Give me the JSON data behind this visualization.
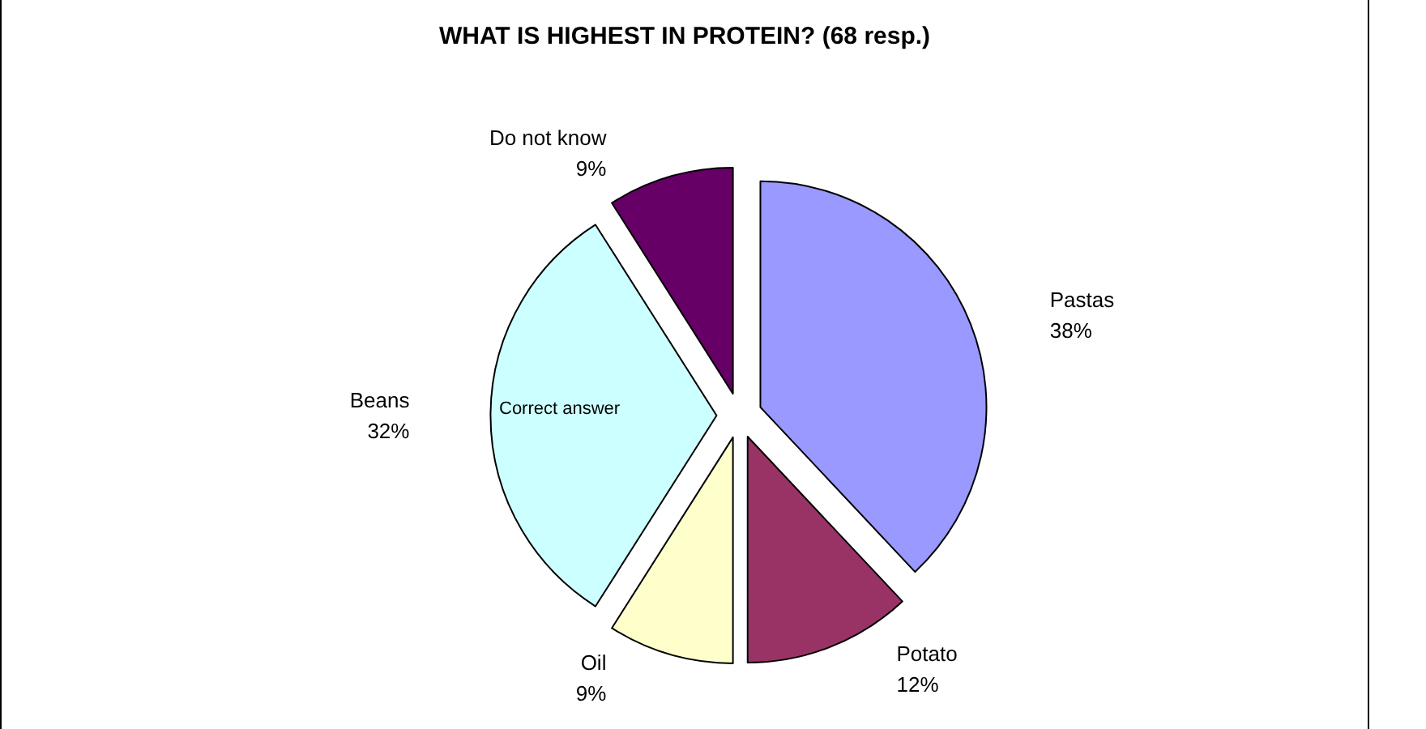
{
  "chart_data": {
    "type": "pie",
    "title": "WHAT IS HIGHEST IN PROTEIN? (68 resp.)",
    "categories": [
      "Pastas",
      "Potato",
      "Oil",
      "Beans",
      "Do not know"
    ],
    "values": [
      38,
      12,
      9,
      32,
      9
    ],
    "value_labels": [
      "38%",
      "12%",
      "9%",
      "32%",
      "9%"
    ],
    "colors": [
      "#9999ff",
      "#993366",
      "#ffffcc",
      "#ccffff",
      "#660066"
    ],
    "annotations": [
      "Correct answer"
    ],
    "legend": false
  }
}
